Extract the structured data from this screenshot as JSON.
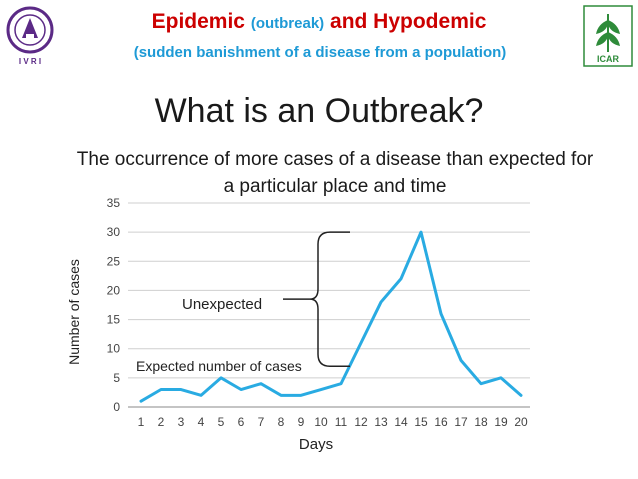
{
  "header": {
    "title_main": "Epidemic",
    "title_paren": "(outbreak)",
    "title_tail": "and Hypodemic",
    "subtitle": "(sudden banishment of a disease from a population)",
    "colors": {
      "title": "#cc0000",
      "accent": "#1e9ad6"
    }
  },
  "logos": {
    "left": {
      "icon": "ivri-emblem-icon",
      "caption": "I V R I"
    },
    "right": {
      "icon": "icar-wheat-logo-icon",
      "caption": "ICAR"
    }
  },
  "slide": {
    "heading": "What is an Outbreak?",
    "definition": "The occurrence of more cases of a disease than expected for a particular place and time"
  },
  "chart_data": {
    "type": "line",
    "x": [
      1,
      2,
      3,
      4,
      5,
      6,
      7,
      8,
      9,
      10,
      11,
      12,
      13,
      14,
      15,
      16,
      17,
      18,
      19,
      20
    ],
    "series": [
      {
        "values": [
          1,
          3,
          3,
          2,
          5,
          3,
          4,
          2,
          2,
          3,
          4,
          11,
          18,
          22,
          30,
          16,
          8,
          4,
          5,
          2
        ],
        "color": "#29abe2"
      }
    ],
    "xlabel": "Days",
    "ylabel": "Number of cases",
    "ylim": [
      0,
      35
    ],
    "yticks": [
      0,
      5,
      10,
      15,
      20,
      25,
      30,
      35
    ],
    "grid": true,
    "annotations": {
      "unexpected": "Unexpected",
      "expected": "Expected number of cases",
      "expected_level": 7,
      "peak_level": 30
    }
  }
}
